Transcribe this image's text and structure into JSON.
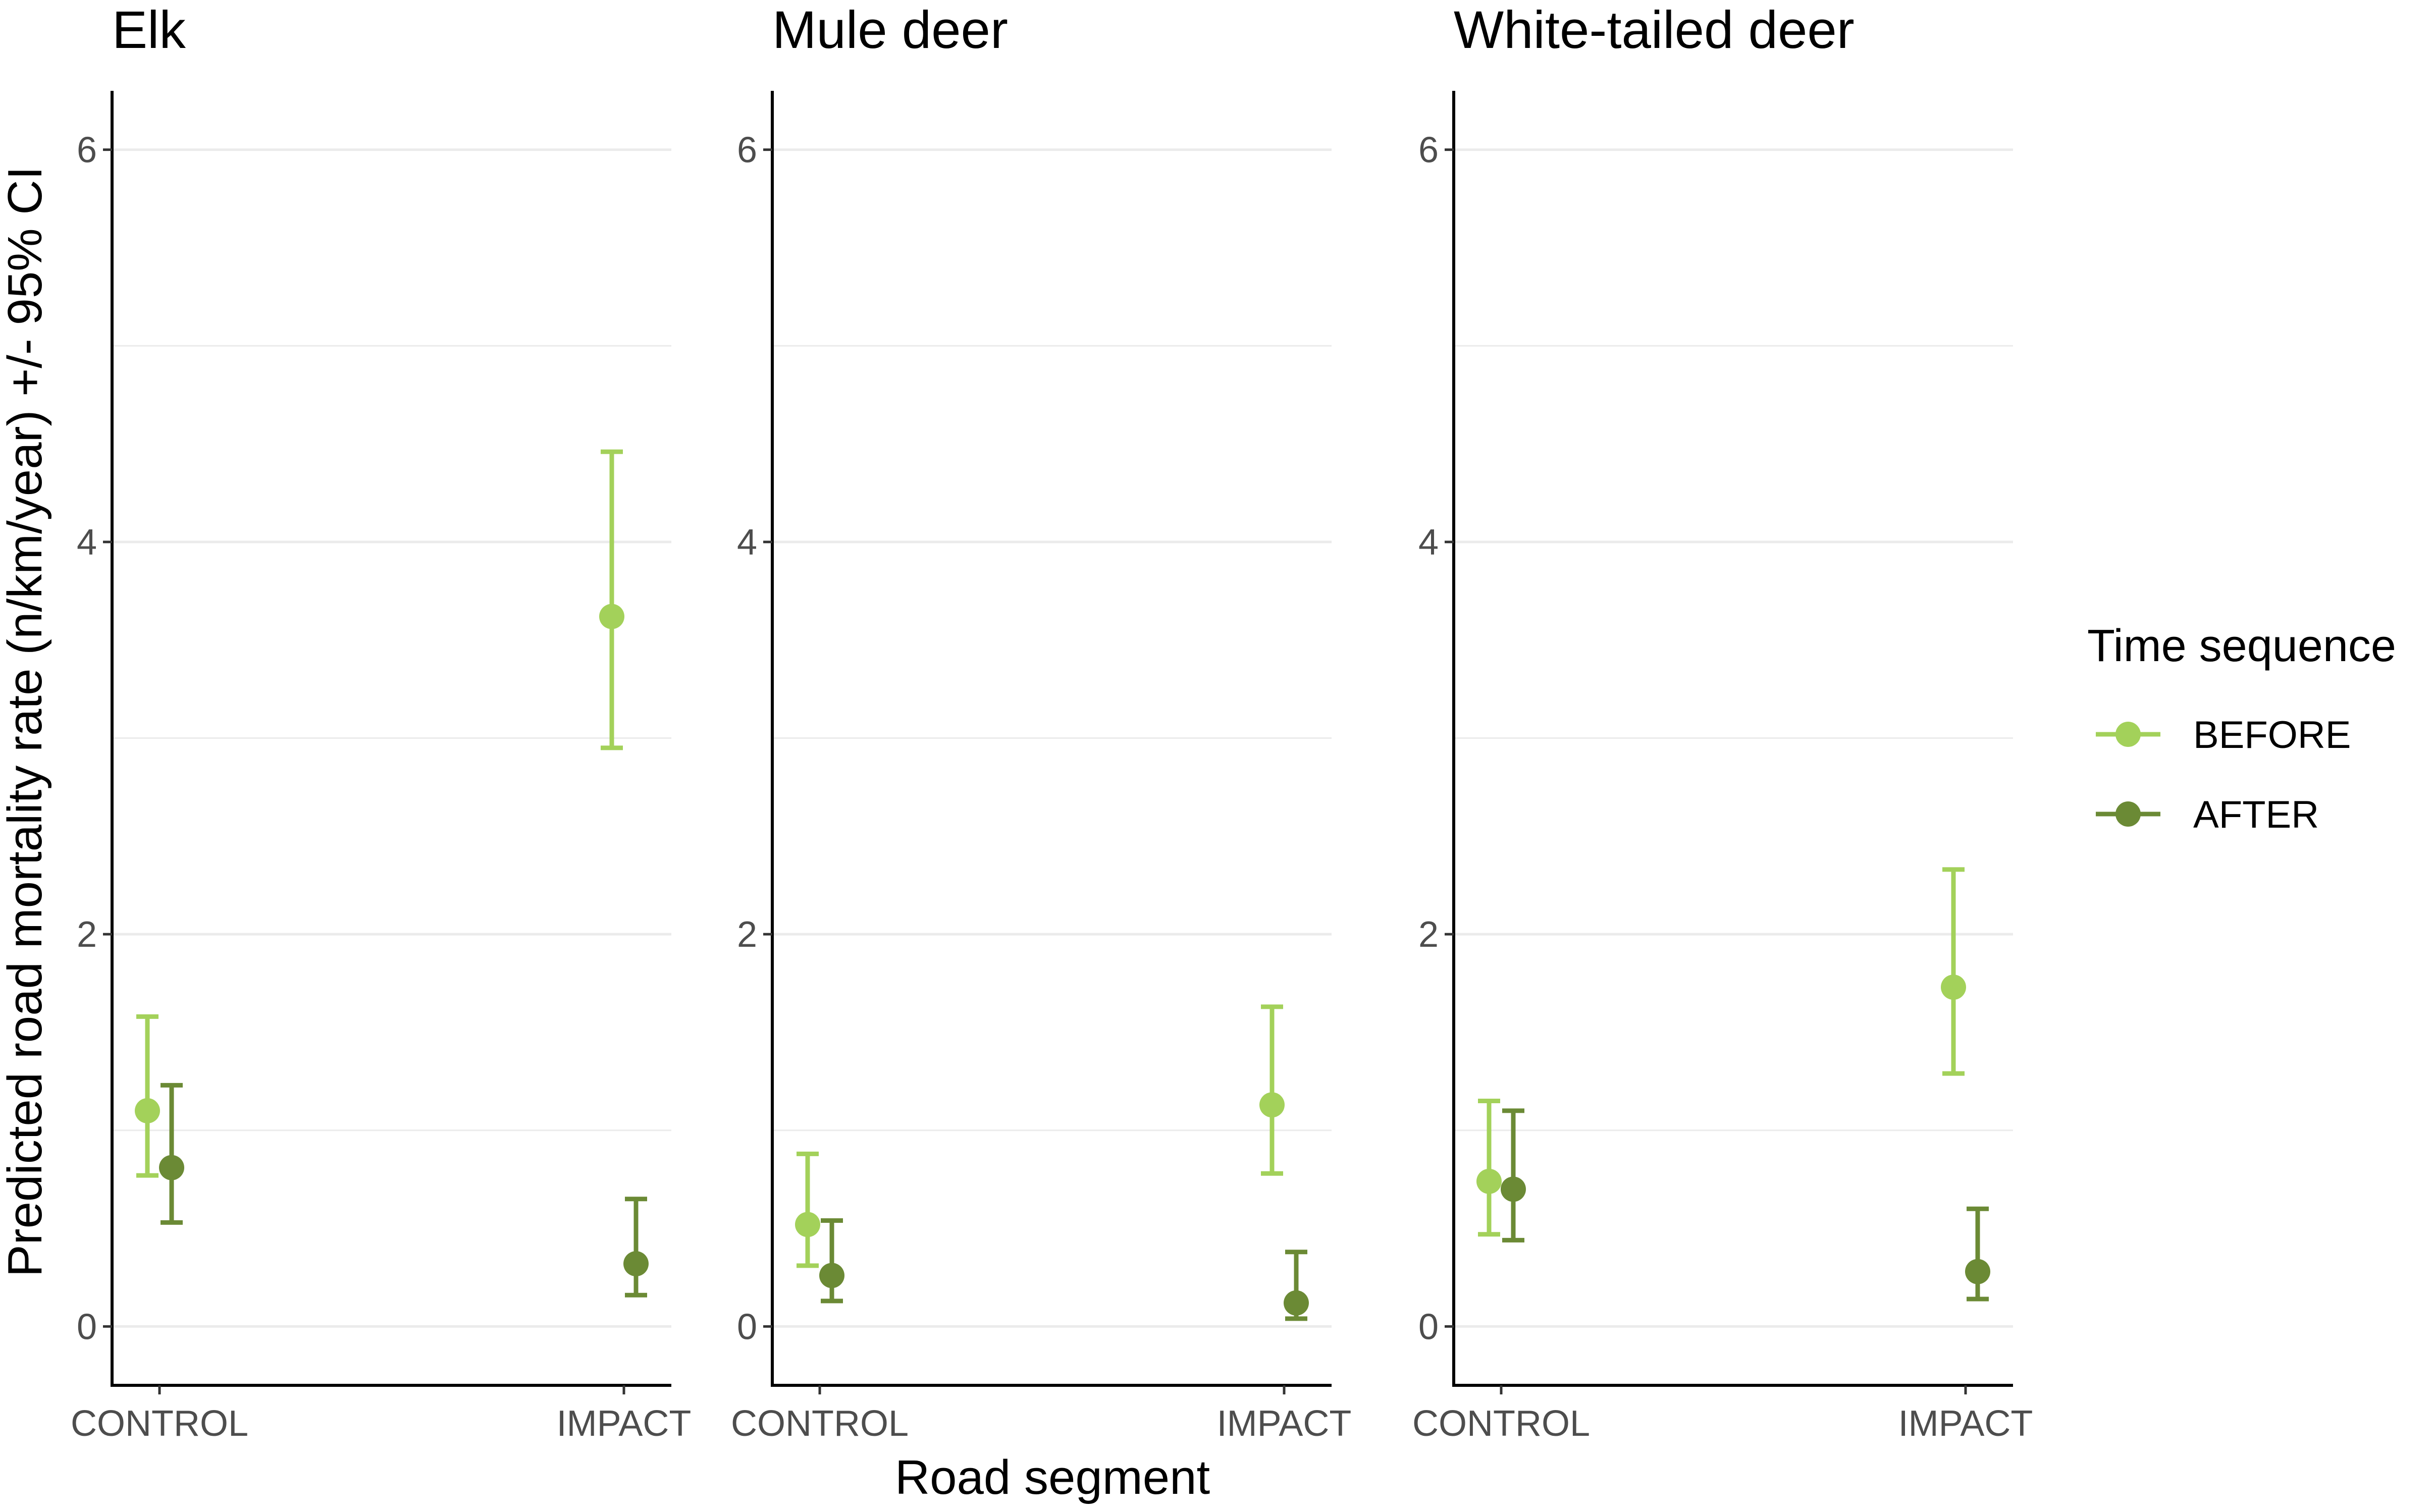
{
  "chart_data": {
    "type": "scatter",
    "ylabel": "Predicted road mortality rate (n/km/year) +/- 95% CI",
    "xlabel": "Road segment",
    "ylim": [
      -0.3,
      6.3
    ],
    "yticks": [
      0,
      2,
      4,
      6
    ],
    "yticks_labels": [
      "0",
      "2",
      "4",
      "6"
    ],
    "grid": "horizontal",
    "categories": [
      "CONTROL",
      "IMPACT"
    ],
    "legend": {
      "title": "Time sequence",
      "placement": "right",
      "items": [
        {
          "name": "BEFORE",
          "color": "#a3d15a"
        },
        {
          "name": "AFTER",
          "color": "#6b8a35"
        }
      ]
    },
    "panels": [
      {
        "title": "Elk",
        "series": [
          {
            "name": "BEFORE",
            "color": "#a3d15a",
            "points": [
              {
                "x": "CONTROL",
                "y": 1.1,
                "lower": 0.77,
                "upper": 1.58
              },
              {
                "x": "IMPACT",
                "y": 3.62,
                "lower": 2.95,
                "upper": 4.46
              }
            ]
          },
          {
            "name": "AFTER",
            "color": "#6b8a35",
            "points": [
              {
                "x": "CONTROL",
                "y": 0.81,
                "lower": 0.53,
                "upper": 1.23
              },
              {
                "x": "IMPACT",
                "y": 0.32,
                "lower": 0.16,
                "upper": 0.65
              }
            ]
          }
        ]
      },
      {
        "title": "Mule deer",
        "series": [
          {
            "name": "BEFORE",
            "color": "#a3d15a",
            "points": [
              {
                "x": "CONTROL",
                "y": 0.52,
                "lower": 0.31,
                "upper": 0.88
              },
              {
                "x": "IMPACT",
                "y": 1.13,
                "lower": 0.78,
                "upper": 1.63
              }
            ]
          },
          {
            "name": "AFTER",
            "color": "#6b8a35",
            "points": [
              {
                "x": "CONTROL",
                "y": 0.26,
                "lower": 0.13,
                "upper": 0.54
              },
              {
                "x": "IMPACT",
                "y": 0.12,
                "lower": 0.04,
                "upper": 0.38
              }
            ]
          }
        ]
      },
      {
        "title": "White-tailed deer",
        "series": [
          {
            "name": "BEFORE",
            "color": "#a3d15a",
            "points": [
              {
                "x": "CONTROL",
                "y": 0.74,
                "lower": 0.47,
                "upper": 1.15
              },
              {
                "x": "IMPACT",
                "y": 1.73,
                "lower": 1.29,
                "upper": 2.33
              }
            ]
          },
          {
            "name": "AFTER",
            "color": "#6b8a35",
            "points": [
              {
                "x": "CONTROL",
                "y": 0.7,
                "lower": 0.44,
                "upper": 1.1
              },
              {
                "x": "IMPACT",
                "y": 0.28,
                "lower": 0.14,
                "upper": 0.6
              }
            ]
          }
        ]
      }
    ]
  }
}
